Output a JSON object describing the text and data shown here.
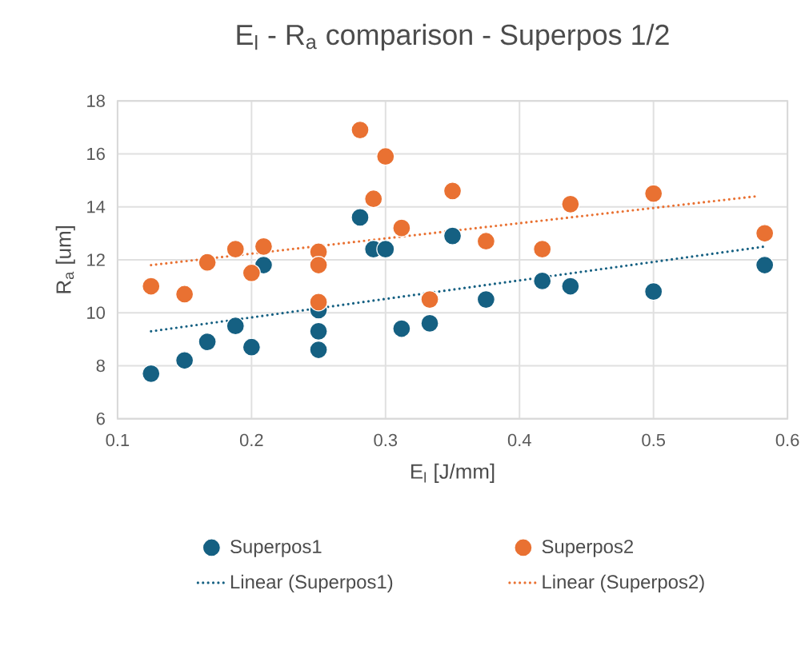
{
  "chart_data": {
    "type": "scatter",
    "title": "E$_{l}$ - R$_{a}$ comparison - Superpos 1/2",
    "xlabel": "E$_{l}$ [J/mm]",
    "ylabel": "R$_{a}$ [um]",
    "xlim": [
      0.1,
      0.6
    ],
    "xticks": [
      0.1,
      0.2,
      0.3,
      0.4,
      0.5,
      0.6
    ],
    "ylim": [
      6,
      18
    ],
    "yticks": [
      6,
      8,
      10,
      12,
      14,
      16,
      18
    ],
    "grid": true,
    "legend": "bottom",
    "series": [
      {
        "name": "Superpos1",
        "marker": "circle",
        "color": "#156082",
        "x": [
          0.125,
          0.15,
          0.167,
          0.188,
          0.2,
          0.209,
          0.25,
          0.25,
          0.25,
          0.281,
          0.291,
          0.3,
          0.312,
          0.333,
          0.35,
          0.375,
          0.417,
          0.438,
          0.5,
          0.583
        ],
        "values": [
          7.7,
          8.2,
          8.9,
          9.5,
          8.7,
          11.8,
          10.1,
          9.3,
          8.6,
          13.6,
          12.4,
          12.4,
          9.4,
          9.6,
          12.9,
          10.5,
          11.2,
          11.0,
          10.8,
          11.8
        ]
      },
      {
        "name": "Superpos2",
        "marker": "circle",
        "color": "#e97132",
        "x": [
          0.125,
          0.15,
          0.167,
          0.188,
          0.2,
          0.209,
          0.25,
          0.25,
          0.25,
          0.281,
          0.3,
          0.291,
          0.312,
          0.333,
          0.35,
          0.375,
          0.417,
          0.438,
          0.5,
          0.583
        ],
        "values": [
          11.0,
          10.7,
          11.9,
          12.4,
          11.5,
          12.5,
          12.3,
          11.8,
          10.4,
          16.9,
          15.9,
          14.3,
          13.2,
          10.5,
          14.6,
          12.7,
          12.4,
          14.1,
          14.5,
          13.0
        ]
      },
      {
        "name": "Linear (Superpos1)",
        "type": "line",
        "marker": "none",
        "line_style": "dotted",
        "color": "#156082",
        "x": [
          0.125,
          0.583
        ],
        "values": [
          9.3,
          12.5
        ]
      },
      {
        "name": "Linear (Superpos2)",
        "type": "line",
        "marker": "none",
        "line_style": "dotted",
        "color": "#e97132",
        "x": [
          0.125,
          0.577
        ],
        "values": [
          11.8,
          14.4
        ]
      }
    ]
  }
}
